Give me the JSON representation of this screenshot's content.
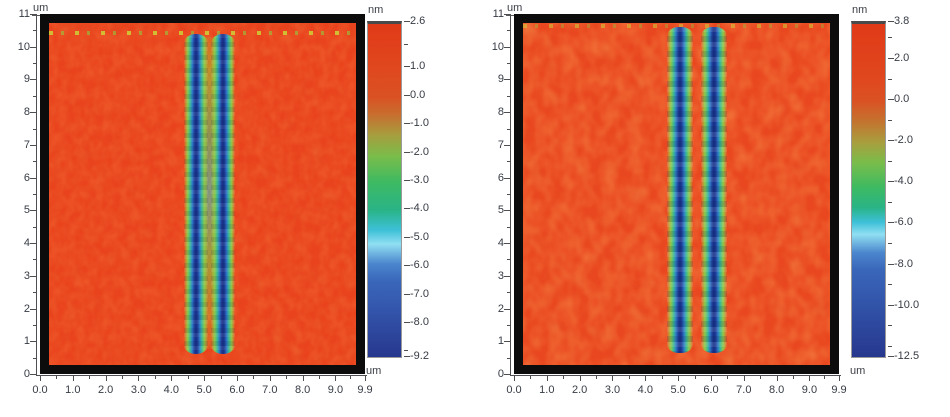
{
  "chart_data": [
    {
      "type": "heatmap",
      "title": "",
      "xlabel": "um",
      "ylabel": "um",
      "x_range": [
        0,
        9.9
      ],
      "y_range": [
        0,
        11
      ],
      "x_tick_values": [
        0,
        1,
        2,
        3,
        4,
        5,
        6,
        7,
        8,
        9,
        9.9
      ],
      "x_tick_labels": [
        "0.0",
        "1.0",
        "2.0",
        "3.0",
        "4.0",
        "5.0",
        "6.0",
        "7.0",
        "8.0",
        "9.0",
        "9.9"
      ],
      "y_tick_values": [
        0,
        1,
        2,
        3,
        4,
        5,
        6,
        7,
        8,
        9,
        10,
        11
      ],
      "y_tick_labels": [
        "0",
        "1",
        "2",
        "3",
        "4",
        "5",
        "6",
        "7",
        "8",
        "9",
        "10",
        "11"
      ],
      "background_color": "#e9431d",
      "background_level_nm": 0.5,
      "description": "AFM topography scan: flat red-orange surface (~0.5 nm) with two parallel vertical trenches (~-8 nm deep, blue cores with green rims) running from y=0.6 to y=10.4 um near x=4.8 and x=5.6 um, a raised green/cyan noisy strip between them, and a thin speckled scan line near y=10.5 um",
      "colorbar": {
        "label": "nm",
        "min": -9.2,
        "max": 2.6,
        "major_ticks": [
          {
            "v": 2.6,
            "label": "2.6"
          },
          {
            "v": 1.0,
            "label": "1.0"
          },
          {
            "v": 0.0,
            "label": "0.0"
          },
          {
            "v": -1.0,
            "label": "-1.0"
          },
          {
            "v": -2.0,
            "label": "-2.0"
          },
          {
            "v": -3.0,
            "label": "-3.0"
          },
          {
            "v": -4.0,
            "label": "-4.0"
          },
          {
            "v": -5.0,
            "label": "-5.0"
          },
          {
            "v": -6.0,
            "label": "-6.0"
          },
          {
            "v": -7.0,
            "label": "-7.0"
          },
          {
            "v": -8.0,
            "label": "-8.0"
          },
          {
            "v": -9.2,
            "label": "-9.2"
          }
        ],
        "minor_ticks": [
          1.8,
          -9.0
        ],
        "stops": [
          {
            "v": 2.6,
            "c": "#e13a18"
          },
          {
            "v": 1.0,
            "c": "#e0481f"
          },
          {
            "v": 0.0,
            "c": "#da5224"
          },
          {
            "v": -0.6,
            "c": "#c86d2e"
          },
          {
            "v": -1.3,
            "c": "#a89c3e"
          },
          {
            "v": -2.1,
            "c": "#79bd4a"
          },
          {
            "v": -3.0,
            "c": "#3dba62"
          },
          {
            "v": -4.0,
            "c": "#2ab487"
          },
          {
            "v": -4.7,
            "c": "#3dc0d8"
          },
          {
            "v": -5.2,
            "c": "#90dff2"
          },
          {
            "v": -5.9,
            "c": "#4b86ce"
          },
          {
            "v": -6.5,
            "c": "#3a67ba"
          },
          {
            "v": -7.5,
            "c": "#3356ac"
          },
          {
            "v": -9.2,
            "c": "#27378e"
          }
        ]
      },
      "features": [
        {
          "kind": "scar_line",
          "y": 10.48,
          "opacity": 0.9
        },
        {
          "kind": "gap_strip",
          "x": 5.16,
          "width": 0.34,
          "y0": 0.75,
          "y1": 10.3
        },
        {
          "kind": "trench",
          "x": 4.75,
          "width": 0.72,
          "y0": 0.6,
          "y1": 10.4,
          "depth_nm": -8.5
        },
        {
          "kind": "trench",
          "x": 5.57,
          "width": 0.72,
          "y0": 0.6,
          "y1": 10.4,
          "depth_nm": -8.5
        }
      ]
    },
    {
      "type": "heatmap",
      "title": "",
      "xlabel": "um",
      "ylabel": "um",
      "x_range": [
        0,
        9.9
      ],
      "y_range": [
        0,
        11
      ],
      "x_tick_values": [
        0,
        1,
        2,
        3,
        4,
        5,
        6,
        7,
        8,
        9,
        9.9
      ],
      "x_tick_labels": [
        "0.0",
        "1.0",
        "2.0",
        "3.0",
        "4.0",
        "5.0",
        "6.0",
        "7.0",
        "8.0",
        "9.0",
        "9.9"
      ],
      "y_tick_values": [
        0,
        1,
        2,
        3,
        4,
        5,
        6,
        7,
        8,
        9,
        10,
        11
      ],
      "y_tick_labels": [
        "0",
        "1",
        "2",
        "3",
        "4",
        "5",
        "6",
        "7",
        "8",
        "9",
        "10",
        "11"
      ],
      "background_color": "#e9471f",
      "background_level_nm": 0.5,
      "description": "AFM topography scan: mottled red-orange surface (~0.5 nm) with two parallel vertical trenches (~-11 nm deep, wavy blue cores with green rims) running from y=0.65 to y=10.6 um near x=5.1 and x=6.1 um, orange gap between them, faint speckles along the very top edge",
      "colorbar": {
        "label": "nm",
        "min": -12.5,
        "max": 3.8,
        "major_ticks": [
          {
            "v": 3.8,
            "label": "3.8"
          },
          {
            "v": 2.0,
            "label": "2.0"
          },
          {
            "v": 0.0,
            "label": "0.0"
          },
          {
            "v": -2.0,
            "label": "-2.0"
          },
          {
            "v": -4.0,
            "label": "-4.0"
          },
          {
            "v": -6.0,
            "label": "-6.0"
          },
          {
            "v": -8.0,
            "label": "-8.0"
          },
          {
            "v": -10.0,
            "label": "-10.0"
          },
          {
            "v": -12.5,
            "label": "-12.5"
          }
        ],
        "minor_ticks": [
          3.0,
          1.0,
          -1.0,
          -3.0,
          -5.0,
          -7.0,
          -9.0,
          -11.0,
          -12.0
        ],
        "stops": [
          {
            "v": 3.8,
            "c": "#e13a18"
          },
          {
            "v": 1.0,
            "c": "#e0481f"
          },
          {
            "v": 0.0,
            "c": "#da5224"
          },
          {
            "v": -1.0,
            "c": "#c3742f"
          },
          {
            "v": -2.0,
            "c": "#a89e3e"
          },
          {
            "v": -3.0,
            "c": "#79bd4a"
          },
          {
            "v": -4.2,
            "c": "#3dba62"
          },
          {
            "v": -5.2,
            "c": "#2ab487"
          },
          {
            "v": -5.9,
            "c": "#3dc0d8"
          },
          {
            "v": -6.5,
            "c": "#90dff2"
          },
          {
            "v": -7.4,
            "c": "#4b86ce"
          },
          {
            "v": -8.2,
            "c": "#3a67ba"
          },
          {
            "v": -10.0,
            "c": "#3153a8"
          },
          {
            "v": -12.5,
            "c": "#27378e"
          }
        ]
      },
      "features": [
        {
          "kind": "scar_line",
          "y": 10.68,
          "opacity": 0.55
        },
        {
          "kind": "trench",
          "x": 5.06,
          "width": 0.78,
          "y0": 0.65,
          "y1": 10.6,
          "depth_nm": -11
        },
        {
          "kind": "trench",
          "x": 6.1,
          "width": 0.78,
          "y0": 0.65,
          "y1": 10.6,
          "depth_nm": -11
        }
      ]
    }
  ]
}
